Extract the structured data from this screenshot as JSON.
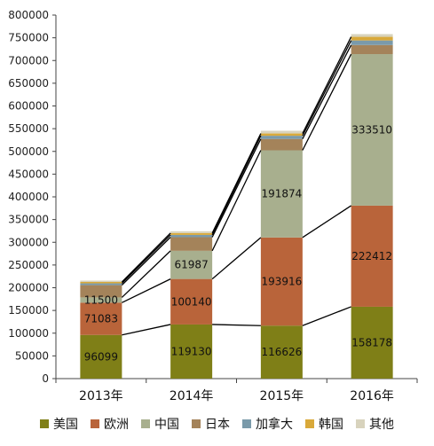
{
  "chart_data": {
    "type": "bar",
    "stacked": true,
    "categories": [
      "2013年",
      "2014年",
      "2015年",
      "2016年"
    ],
    "series": [
      {
        "name": "美国",
        "color": "#7F7F17",
        "values": [
          96099,
          119130,
          116626,
          158178
        ],
        "labels": [
          "96099",
          "119130",
          "116626",
          "158178"
        ]
      },
      {
        "name": "欧洲",
        "color": "#B9643A",
        "values": [
          71083,
          100140,
          193916,
          222412
        ],
        "labels": [
          "71083",
          "100140",
          "193916",
          "222412"
        ]
      },
      {
        "name": "中国",
        "color": "#A8AF8E",
        "values": [
          11500,
          61987,
          191874,
          333510
        ],
        "labels": [
          "11500",
          "61987",
          "191874",
          "333510"
        ]
      },
      {
        "name": "日本",
        "color": "#A4835A",
        "values": [
          27000,
          30000,
          25000,
          20000
        ],
        "labels": [
          "",
          "",
          "",
          ""
        ]
      },
      {
        "name": "加拿大",
        "color": "#7A9AAA",
        "values": [
          4000,
          5000,
          7000,
          10000
        ],
        "labels": [
          "",
          "",
          "",
          ""
        ]
      },
      {
        "name": "韩国",
        "color": "#D9A93A",
        "values": [
          3000,
          4000,
          5000,
          8000
        ],
        "labels": [
          "",
          "",
          "",
          ""
        ]
      },
      {
        "name": "其他",
        "color": "#D8D3BD",
        "values": [
          3000,
          4000,
          6000,
          6000
        ],
        "labels": [
          "",
          "",
          "",
          ""
        ]
      }
    ],
    "ylim": [
      0,
      800000
    ],
    "ytick_step": 50000,
    "grid": false,
    "series_lines": true,
    "legend_position": "bottom",
    "title": "",
    "xlabel": "",
    "ylabel": ""
  }
}
